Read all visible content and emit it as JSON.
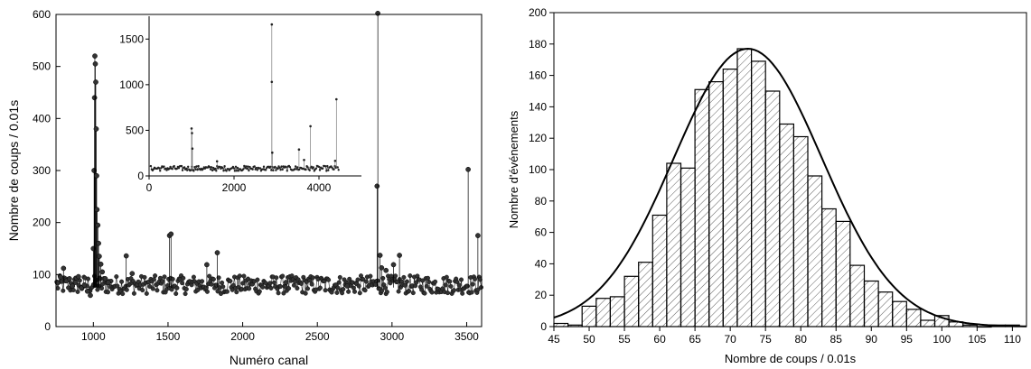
{
  "chart_data": [
    {
      "type": "scatter",
      "xlabel": "Numéro canal",
      "ylabel": "Nombre de coups / 0.01s",
      "xlim": [
        750,
        3600
      ],
      "ylim": [
        0,
        600
      ],
      "xticks": [
        1000,
        1500,
        2000,
        2500,
        3000,
        3500
      ],
      "yticks": [
        0,
        100,
        200,
        300,
        400,
        500,
        600
      ],
      "baseline_band": [
        45,
        110
      ],
      "series": [
        {
          "values_description": "counts per channel (dots joined by thin line)",
          "points": [
            [
              760,
              84
            ],
            [
              780,
              95
            ],
            [
              800,
              112
            ],
            [
              820,
              88
            ],
            [
              840,
              92
            ],
            [
              860,
              78
            ],
            [
              880,
              85
            ],
            [
              900,
              96
            ],
            [
              920,
              74
            ],
            [
              940,
              80
            ],
            [
              960,
              68
            ],
            [
              980,
              60
            ],
            [
              1000,
              150
            ],
            [
              1005,
              300
            ],
            [
              1008,
              440
            ],
            [
              1010,
              520
            ],
            [
              1013,
              505
            ],
            [
              1016,
              470
            ],
            [
              1019,
              380
            ],
            [
              1022,
              290
            ],
            [
              1025,
              225
            ],
            [
              1030,
              195
            ],
            [
              1035,
              160
            ],
            [
              1040,
              135
            ],
            [
              1050,
              120
            ],
            [
              1060,
              105
            ],
            [
              1080,
              92
            ],
            [
              1100,
              85
            ],
            [
              1220,
              136
            ],
            [
              1260,
              102
            ],
            [
              1510,
              175
            ],
            [
              1520,
              178
            ],
            [
              1760,
              119
            ],
            [
              1830,
              142
            ],
            [
              2290,
              85
            ],
            [
              2700,
              78
            ],
            [
              2900,
              270
            ],
            [
              2905,
              602
            ],
            [
              2920,
              137
            ],
            [
              2930,
              113
            ],
            [
              2960,
              108
            ],
            [
              3010,
              119
            ],
            [
              3050,
              137
            ],
            [
              3510,
              302
            ],
            [
              3575,
              175
            ]
          ]
        }
      ],
      "inset": {
        "xlim": [
          0,
          5000
        ],
        "ylim": [
          0,
          1750
        ],
        "xticks": [
          0,
          2000,
          4000
        ],
        "yticks": [
          0,
          500,
          1000,
          1500
        ],
        "baseline_band": [
          55,
          110
        ],
        "points": [
          [
            1000,
            520
          ],
          [
            1010,
            470
          ],
          [
            1020,
            300
          ],
          [
            1600,
            160
          ],
          [
            2890,
            1660
          ],
          [
            2890,
            1030
          ],
          [
            2900,
            255
          ],
          [
            3530,
            290
          ],
          [
            3800,
            545
          ],
          [
            4410,
            840
          ],
          [
            4380,
            165
          ],
          [
            3650,
            175
          ]
        ]
      }
    },
    {
      "type": "bar",
      "xlabel": "Nombre de coups / 0.01s",
      "ylabel": "Nombre d'événements",
      "xlim": [
        45,
        112
      ],
      "ylim": [
        0,
        200
      ],
      "xticks": [
        45,
        50,
        55,
        60,
        65,
        70,
        75,
        80,
        85,
        90,
        95,
        100,
        105,
        110
      ],
      "yticks": [
        0,
        20,
        40,
        60,
        80,
        100,
        120,
        140,
        160,
        180,
        200
      ],
      "bin_width": 2,
      "bins": [
        {
          "x": 46,
          "y": 2
        },
        {
          "x": 48,
          "y": 1
        },
        {
          "x": 50,
          "y": 13
        },
        {
          "x": 52,
          "y": 18
        },
        {
          "x": 54,
          "y": 19
        },
        {
          "x": 56,
          "y": 32
        },
        {
          "x": 58,
          "y": 41
        },
        {
          "x": 60,
          "y": 71
        },
        {
          "x": 62,
          "y": 104
        },
        {
          "x": 64,
          "y": 101
        },
        {
          "x": 66,
          "y": 151
        },
        {
          "x": 68,
          "y": 156
        },
        {
          "x": 70,
          "y": 164
        },
        {
          "x": 72,
          "y": 177
        },
        {
          "x": 74,
          "y": 169
        },
        {
          "x": 76,
          "y": 150
        },
        {
          "x": 78,
          "y": 129
        },
        {
          "x": 80,
          "y": 121
        },
        {
          "x": 82,
          "y": 96
        },
        {
          "x": 84,
          "y": 75
        },
        {
          "x": 86,
          "y": 67
        },
        {
          "x": 88,
          "y": 39
        },
        {
          "x": 90,
          "y": 29
        },
        {
          "x": 92,
          "y": 22
        },
        {
          "x": 94,
          "y": 16
        },
        {
          "x": 96,
          "y": 11
        },
        {
          "x": 98,
          "y": 4
        },
        {
          "x": 100,
          "y": 7
        },
        {
          "x": 102,
          "y": 3
        },
        {
          "x": 104,
          "y": 1
        },
        {
          "x": 106,
          "y": 0
        },
        {
          "x": 108,
          "y": 1
        },
        {
          "x": 110,
          "y": 1
        }
      ],
      "fit": {
        "type": "gaussian",
        "amplitude": 177,
        "mean": 72.5,
        "sigma": 10.5
      }
    }
  ]
}
